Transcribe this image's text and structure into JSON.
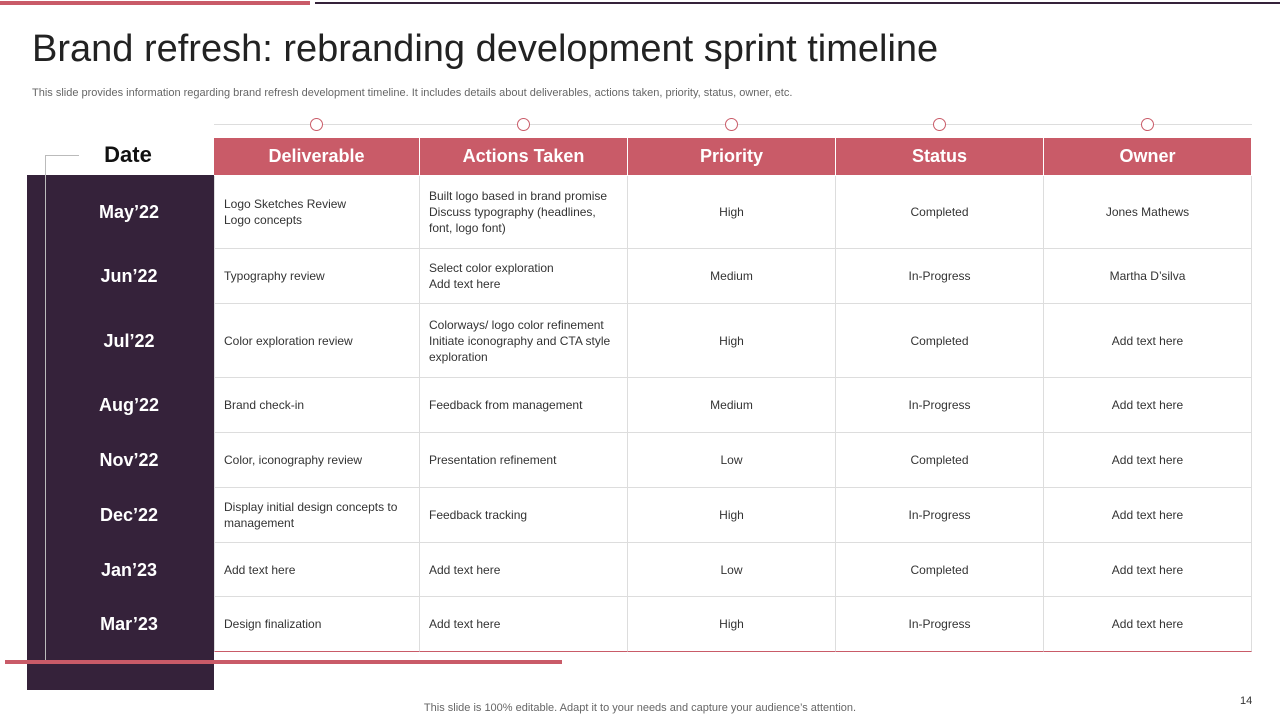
{
  "header": {
    "title": "Brand refresh: rebranding development sprint timeline",
    "subtitle": "This slide provides information regarding brand refresh development timeline. It includes details about deliverables, actions taken, priority, status, owner, etc."
  },
  "table": {
    "date_label": "Date",
    "columns": [
      "Deliverable",
      "Actions Taken",
      "Priority",
      "Status",
      "Owner"
    ],
    "rows": [
      {
        "date": "May’22",
        "cells": [
          [
            "Logo Sketches Review",
            "Logo concepts"
          ],
          [
            "Built logo based in brand promise",
            "Discuss typography (headlines, font, logo font)"
          ],
          [
            "High"
          ],
          [
            "Completed"
          ],
          [
            "Jones Mathews"
          ]
        ]
      },
      {
        "date": "Jun’22",
        "cells": [
          [
            "Typography  review"
          ],
          [
            "Select color exploration",
            "Add text here"
          ],
          [
            "Medium"
          ],
          [
            "In-Progress"
          ],
          [
            "Martha D’silva"
          ]
        ]
      },
      {
        "date": "Jul’22",
        "cells": [
          [
            "Color exploration review"
          ],
          [
            "Colorways/ logo color refinement",
            "Initiate iconography and CTA style exploration"
          ],
          [
            "High"
          ],
          [
            "Completed"
          ],
          [
            "Add text here"
          ]
        ]
      },
      {
        "date": "Aug’22",
        "cells": [
          [
            "Brand check-in"
          ],
          [
            "Feedback from management"
          ],
          [
            "Medium"
          ],
          [
            "In-Progress"
          ],
          [
            "Add text here"
          ]
        ]
      },
      {
        "date": "Nov’22",
        "cells": [
          [
            "Color, iconography review"
          ],
          [
            "Presentation refinement"
          ],
          [
            "Low"
          ],
          [
            "Completed"
          ],
          [
            "Add text here"
          ]
        ]
      },
      {
        "date": "Dec’22",
        "cells": [
          [
            "Display initial design concepts to management"
          ],
          [
            "Feedback tracking"
          ],
          [
            "High"
          ],
          [
            "In-Progress"
          ],
          [
            "Add text here"
          ]
        ]
      },
      {
        "date": "Jan’23",
        "cells": [
          [
            "Add text here"
          ],
          [
            "Add text here"
          ],
          [
            "Low"
          ],
          [
            "Completed"
          ],
          [
            "Add text here"
          ]
        ]
      },
      {
        "date": "Mar’23",
        "cells": [
          [
            "Design finalization"
          ],
          [
            "Add text here"
          ],
          [
            "High"
          ],
          [
            "In-Progress"
          ],
          [
            "Add text here"
          ]
        ]
      }
    ]
  },
  "footer": {
    "note": "This slide is 100% editable. Adapt it to your needs and capture your audience’s attention.",
    "page_number": "14"
  }
}
